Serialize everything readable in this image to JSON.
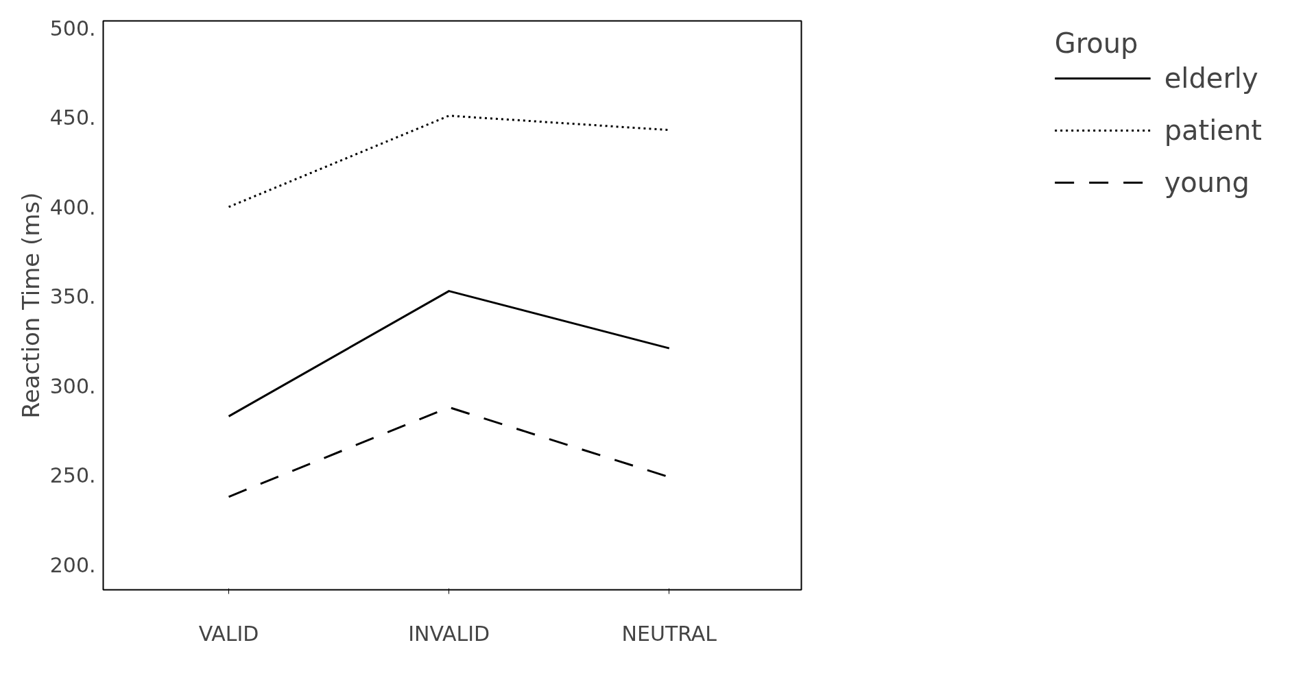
{
  "chart_data": {
    "type": "line",
    "ylabel": "Reaction Time (ms)",
    "legend_title": "Group",
    "legend": "right",
    "grid": false,
    "categories": [
      "VALID",
      "INVALID",
      "NEUTRAL"
    ],
    "ylim": [
      186,
      504
    ],
    "yticks": [
      {
        "value": 200,
        "label": "200."
      },
      {
        "value": 250,
        "label": "250."
      },
      {
        "value": 300,
        "label": "300."
      },
      {
        "value": 350,
        "label": "350."
      },
      {
        "value": 400,
        "label": "400."
      },
      {
        "value": 450,
        "label": "450."
      },
      {
        "value": 500,
        "label": "500."
      }
    ],
    "series": [
      {
        "name": "elderly",
        "color": "#000000",
        "line_style": "solid",
        "values": [
          283,
          353,
          321
        ]
      },
      {
        "name": "patient",
        "color": "#000000",
        "line_style": "dotted",
        "values": [
          400,
          451,
          443
        ]
      },
      {
        "name": "young",
        "color": "#000000",
        "line_style": "dashed",
        "values": [
          238,
          288,
          249
        ]
      }
    ]
  }
}
